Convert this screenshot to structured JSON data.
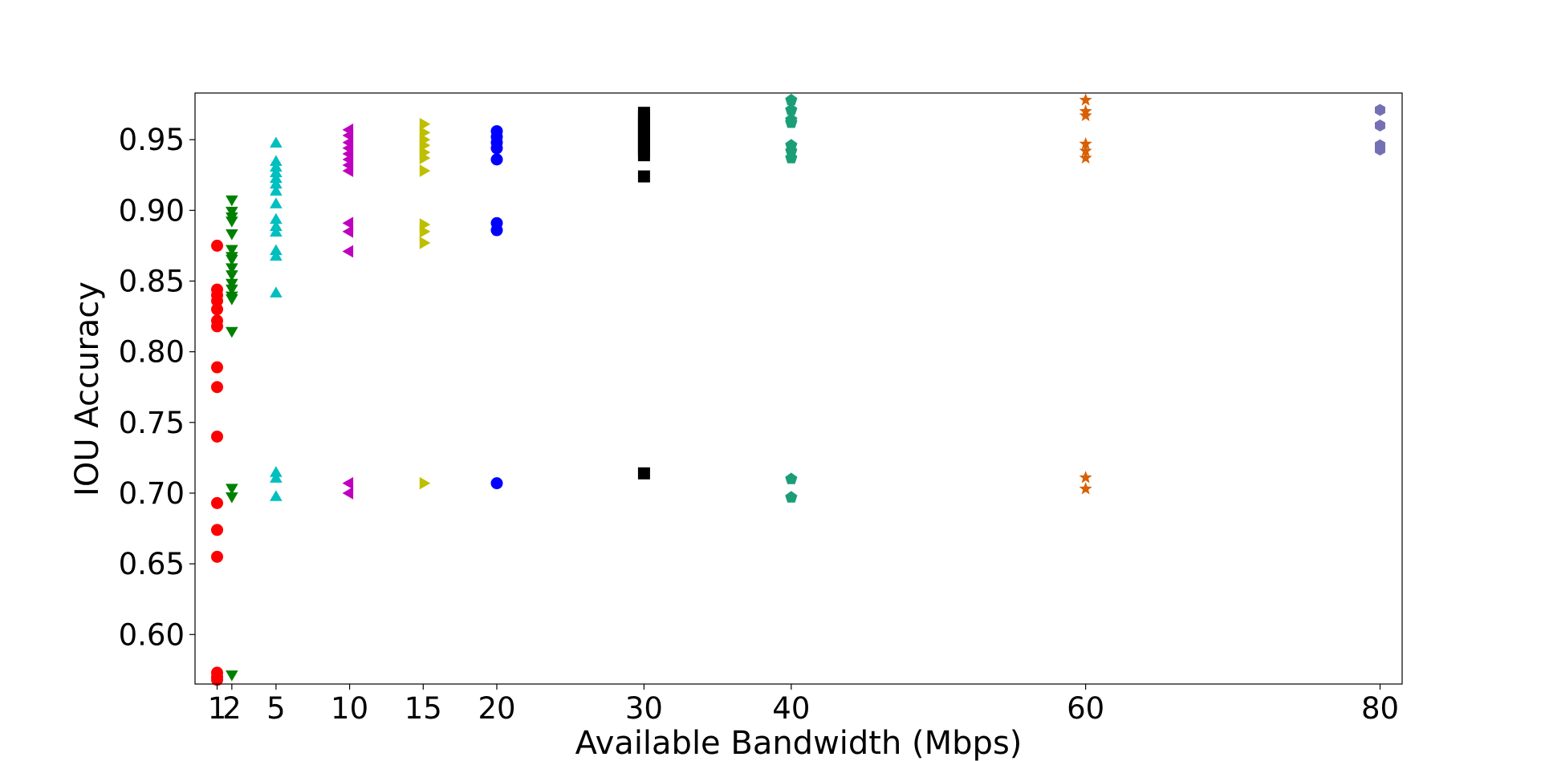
{
  "chart_data": {
    "type": "scatter",
    "title": "",
    "xlabel": "Available Bandwidth (Mbps)",
    "ylabel": "IOU Accuracy",
    "xlim": [
      -0.5,
      81.5
    ],
    "ylim": [
      0.565,
      0.983
    ],
    "x_ticks": [
      1,
      2,
      5,
      10,
      15,
      20,
      30,
      40,
      60,
      80
    ],
    "y_ticks": [
      0.6,
      0.65,
      0.7,
      0.75,
      0.8,
      0.85,
      0.9,
      0.95
    ],
    "y_tick_labels": [
      "0.60",
      "0.65",
      "0.70",
      "0.75",
      "0.80",
      "0.85",
      "0.90",
      "0.95"
    ],
    "grid": false,
    "legend": "none",
    "series": [
      {
        "x": 1,
        "color": "#ff0000",
        "marker": "circle",
        "values": [
          0.875,
          0.844,
          0.84,
          0.836,
          0.83,
          0.822,
          0.818,
          0.789,
          0.775,
          0.74,
          0.693,
          0.674,
          0.655,
          0.573,
          0.57,
          0.568
        ]
      },
      {
        "x": 2,
        "color": "#008000",
        "marker": "triangle-down",
        "values": [
          0.908,
          0.9,
          0.896,
          0.893,
          0.884,
          0.873,
          0.868,
          0.866,
          0.86,
          0.855,
          0.849,
          0.845,
          0.84,
          0.838,
          0.815,
          0.704,
          0.698,
          0.572
        ]
      },
      {
        "x": 5,
        "color": "#00bfbf",
        "marker": "triangle-up",
        "values": [
          0.947,
          0.934,
          0.93,
          0.926,
          0.922,
          0.918,
          0.913,
          0.904,
          0.893,
          0.888,
          0.884,
          0.871,
          0.867,
          0.841,
          0.714,
          0.71,
          0.697
        ]
      },
      {
        "x": 10,
        "color": "#bf00bf",
        "marker": "triangle-left",
        "values": [
          0.957,
          0.953,
          0.948,
          0.944,
          0.94,
          0.936,
          0.932,
          0.928,
          0.891,
          0.885,
          0.871,
          0.707,
          0.7
        ]
      },
      {
        "x": 15,
        "color": "#bfbf00",
        "marker": "triangle-right",
        "values": [
          0.961,
          0.955,
          0.95,
          0.946,
          0.941,
          0.937,
          0.928,
          0.89,
          0.885,
          0.877,
          0.707
        ]
      },
      {
        "x": 20,
        "color": "#0000ff",
        "marker": "circle",
        "values": [
          0.956,
          0.952,
          0.948,
          0.944,
          0.936,
          0.891,
          0.886,
          0.707
        ]
      },
      {
        "x": 30,
        "color": "#000000",
        "marker": "square",
        "values": [
          0.969,
          0.966,
          0.963,
          0.96,
          0.957,
          0.954,
          0.951,
          0.948,
          0.945,
          0.942,
          0.939,
          0.924,
          0.714
        ]
      },
      {
        "x": 40,
        "color": "#1b9e77",
        "marker": "pentagon",
        "values": [
          0.978,
          0.971,
          0.964,
          0.962,
          0.946,
          0.942,
          0.937,
          0.71,
          0.697
        ]
      },
      {
        "x": 60,
        "color": "#d95f02",
        "marker": "star",
        "values": [
          0.978,
          0.97,
          0.967,
          0.947,
          0.942,
          0.937,
          0.711,
          0.703
        ]
      },
      {
        "x": 80,
        "color": "#7570b3",
        "marker": "hexagon",
        "values": [
          0.971,
          0.96,
          0.946,
          0.943
        ]
      }
    ]
  }
}
